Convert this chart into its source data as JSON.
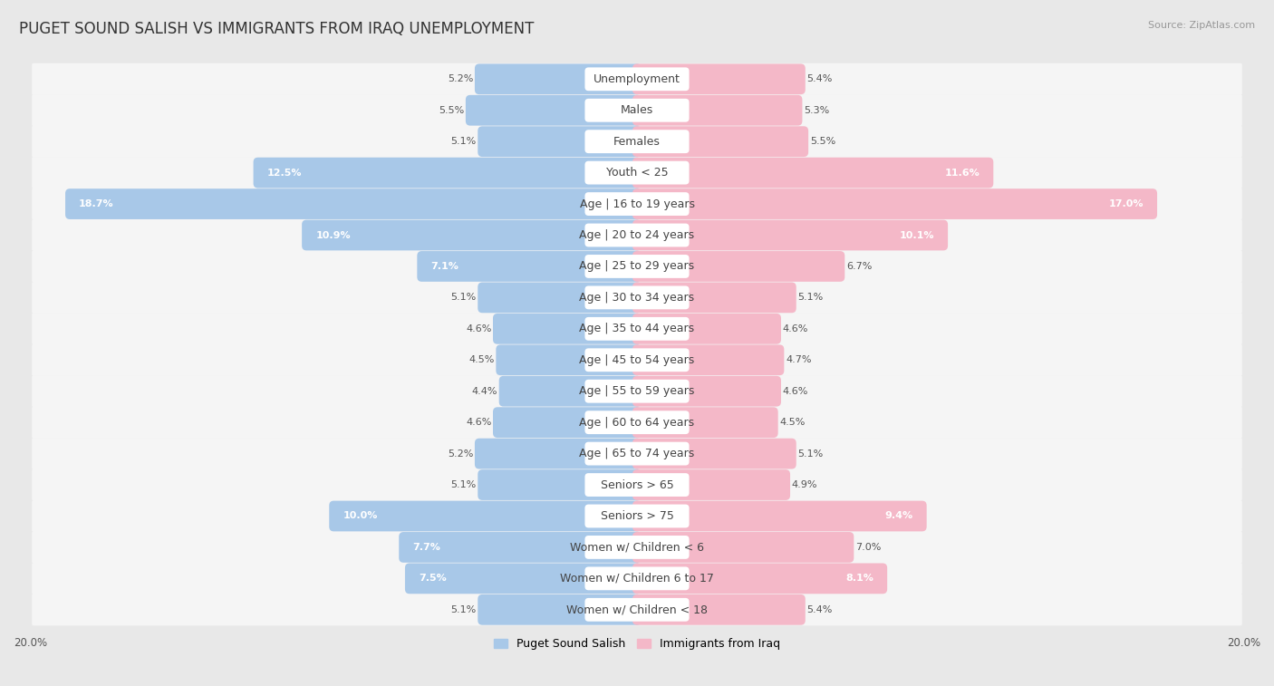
{
  "title": "PUGET SOUND SALISH VS IMMIGRANTS FROM IRAQ UNEMPLOYMENT",
  "source": "Source: ZipAtlas.com",
  "categories": [
    "Unemployment",
    "Males",
    "Females",
    "Youth < 25",
    "Age | 16 to 19 years",
    "Age | 20 to 24 years",
    "Age | 25 to 29 years",
    "Age | 30 to 34 years",
    "Age | 35 to 44 years",
    "Age | 45 to 54 years",
    "Age | 55 to 59 years",
    "Age | 60 to 64 years",
    "Age | 65 to 74 years",
    "Seniors > 65",
    "Seniors > 75",
    "Women w/ Children < 6",
    "Women w/ Children 6 to 17",
    "Women w/ Children < 18"
  ],
  "left_values": [
    5.2,
    5.5,
    5.1,
    12.5,
    18.7,
    10.9,
    7.1,
    5.1,
    4.6,
    4.5,
    4.4,
    4.6,
    5.2,
    5.1,
    10.0,
    7.7,
    7.5,
    5.1
  ],
  "right_values": [
    5.4,
    5.3,
    5.5,
    11.6,
    17.0,
    10.1,
    6.7,
    5.1,
    4.6,
    4.7,
    4.6,
    4.5,
    5.1,
    4.9,
    9.4,
    7.0,
    8.1,
    5.4
  ],
  "left_color": "#a8c8e8",
  "right_color": "#f4b8c8",
  "left_label": "Puget Sound Salish",
  "right_label": "Immigrants from Iraq",
  "xlim": 20.0,
  "bg_color": "#e8e8e8",
  "row_bg_color": "#f5f5f5",
  "row_alt_color": "#ebebeb",
  "pill_color": "#ffffff",
  "title_fontsize": 12,
  "label_fontsize": 9,
  "value_fontsize": 8,
  "source_fontsize": 8
}
